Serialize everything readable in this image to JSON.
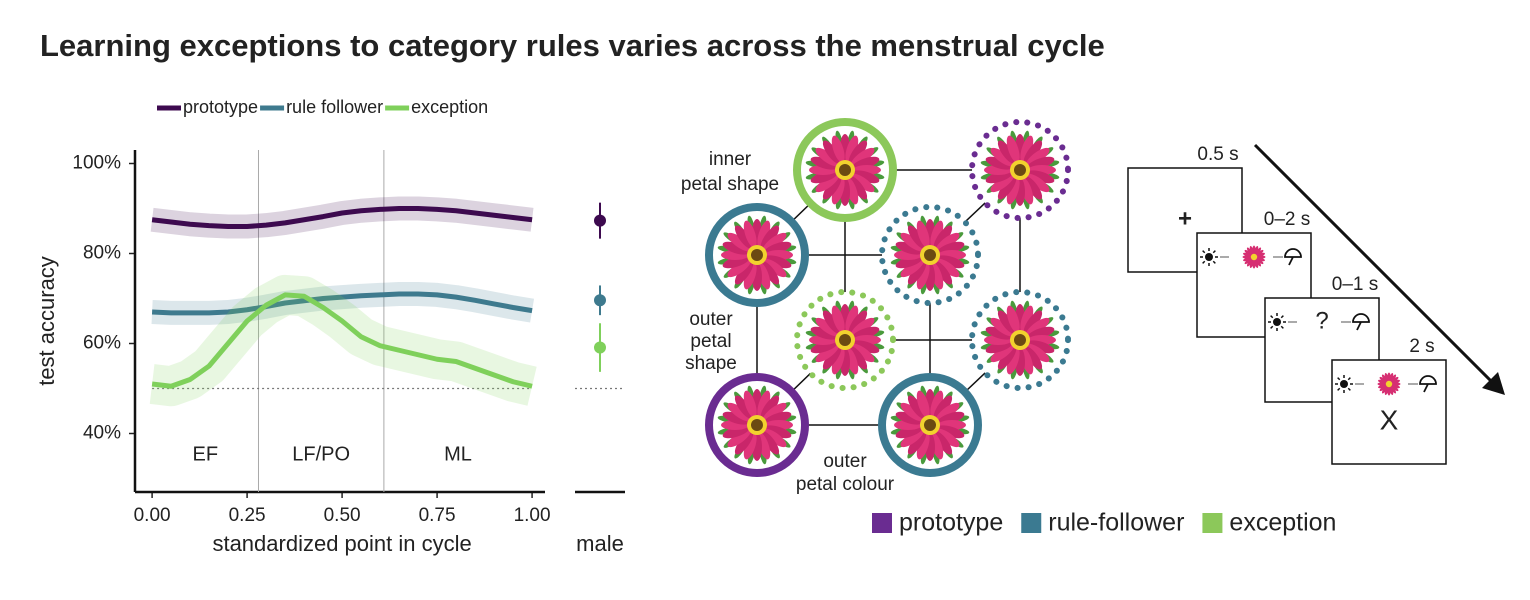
{
  "title": "Learning exceptions to category rules varies across the menstrual cycle",
  "chart_data": {
    "type": "line",
    "x": [
      0,
      0.05,
      0.1,
      0.15,
      0.2,
      0.25,
      0.3,
      0.35,
      0.4,
      0.45,
      0.5,
      0.55,
      0.6,
      0.65,
      0.7,
      0.75,
      0.8,
      0.85,
      0.9,
      0.95,
      1
    ],
    "series": [
      {
        "name": "prototype",
        "color": "#3d0a4f",
        "values": [
          87.5,
          87,
          86.5,
          86.2,
          86,
          86,
          86.3,
          86.8,
          87.5,
          88.2,
          89,
          89.5,
          89.8,
          90,
          90,
          89.8,
          89.5,
          89,
          88.5,
          88,
          87.5
        ]
      },
      {
        "name": "rule follower",
        "color": "#3e7a8e",
        "values": [
          67,
          66.8,
          66.8,
          66.8,
          67,
          67.5,
          68.2,
          69,
          69.5,
          70,
          70.3,
          70.6,
          70.8,
          71,
          71,
          70.8,
          70.3,
          69.6,
          68.8,
          68,
          67.3
        ]
      },
      {
        "name": "exception",
        "color": "#7fd05b",
        "values": [
          51,
          50.5,
          52,
          55,
          60,
          65,
          68.5,
          70.8,
          70.5,
          68,
          65,
          61.5,
          59.5,
          58.5,
          57.5,
          56.5,
          56,
          54.5,
          53,
          51.5,
          50.5
        ]
      }
    ],
    "xlim": [
      -0.045,
      1.034
    ],
    "ylim": [
      27,
      103
    ],
    "xticks": [
      {
        "value": 0,
        "label": "0.00"
      },
      {
        "value": 0.25,
        "label": "0.25"
      },
      {
        "value": 0.5,
        "label": "0.50"
      },
      {
        "value": 0.75,
        "label": "0.75"
      },
      {
        "value": 1,
        "label": "1.00"
      }
    ],
    "yticks": [
      {
        "value": 40,
        "label": "40%"
      },
      {
        "value": 60,
        "label": "60%"
      },
      {
        "value": 80,
        "label": "80%"
      },
      {
        "value": 100,
        "label": "100%"
      }
    ],
    "xlabel": "standardized point in cycle",
    "ylabel": "test accuracy",
    "reference_line": 50,
    "phase_boundaries": [
      0.28,
      0.61
    ],
    "phase_labels": [
      "EF",
      "LF/PO",
      "ML"
    ],
    "legend_position": "top"
  },
  "male_panel": {
    "label": "male",
    "values": [
      87.3,
      69.6,
      59.1
    ],
    "errors": [
      4,
      3.3,
      5.4
    ]
  },
  "stimulus_diagram": {
    "axis_labels": [
      [
        "inner",
        "petal shape"
      ],
      [
        "outer",
        "petal",
        "shape"
      ],
      [
        "outer",
        "petal colour"
      ]
    ],
    "legend": [
      {
        "name": "prototype",
        "color": "#6a2c91"
      },
      {
        "name": "rule-follower",
        "color": "#3b7a91"
      },
      {
        "name": "exception",
        "color": "#8cc85a"
      }
    ]
  },
  "task": {
    "screens": [
      {
        "duration": "0.5 s",
        "content": "+"
      },
      {
        "duration": "0–2 s"
      },
      {
        "duration": "0–1 s",
        "content": "?"
      },
      {
        "duration": "2 s",
        "content": "X"
      }
    ]
  }
}
